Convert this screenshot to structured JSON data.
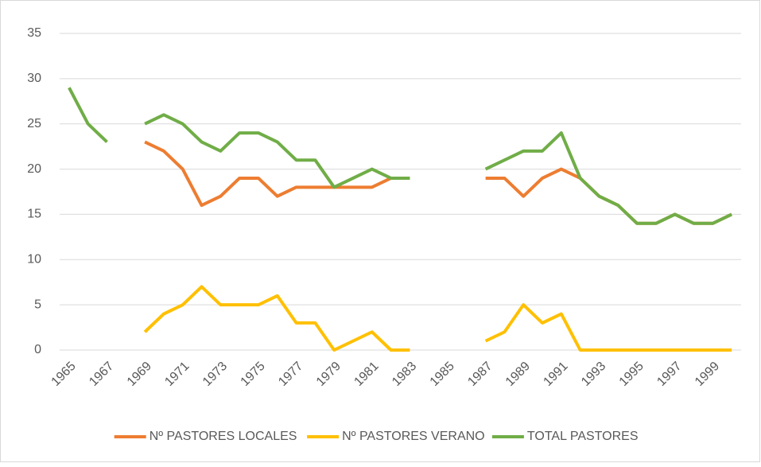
{
  "chart_data": {
    "type": "line",
    "categories": [
      "1965",
      null,
      "1967",
      null,
      "1969",
      null,
      "1971",
      null,
      "1973",
      null,
      "1975",
      null,
      "1977",
      null,
      "1979",
      null,
      "1981",
      null,
      "1983",
      null,
      "1985",
      null,
      "1987",
      null,
      "1989",
      null,
      "1991",
      null,
      "1993",
      null,
      "1995",
      null,
      "1997",
      null,
      "1999",
      null
    ],
    "series": [
      {
        "name": "Nº PASTORES LOCALES",
        "color": "#ED7D31",
        "values": [
          null,
          null,
          null,
          null,
          23,
          22,
          20,
          16,
          17,
          19,
          19,
          17,
          18,
          18,
          18,
          18,
          18,
          19,
          19,
          null,
          null,
          null,
          19,
          19,
          17,
          19,
          20,
          19,
          17,
          16,
          14,
          14,
          15,
          14,
          14,
          15
        ]
      },
      {
        "name": "Nº PASTORES VERANO",
        "color": "#FFC000",
        "values": [
          null,
          null,
          null,
          null,
          2,
          4,
          5,
          7,
          5,
          5,
          5,
          6,
          3,
          3,
          0,
          1,
          2,
          0,
          0,
          null,
          null,
          null,
          1,
          2,
          5,
          3,
          4,
          0,
          0,
          0,
          0,
          0,
          0,
          0,
          0,
          0
        ]
      },
      {
        "name": "TOTAL PASTORES",
        "color": "#70AD47",
        "values": [
          29,
          25,
          23,
          null,
          25,
          26,
          25,
          23,
          22,
          24,
          24,
          23,
          21,
          21,
          18,
          19,
          20,
          19,
          19,
          null,
          null,
          null,
          20,
          21,
          22,
          22,
          24,
          19,
          17,
          16,
          14,
          14,
          15,
          14,
          14,
          15
        ]
      }
    ],
    "ylim": [
      0,
      35
    ],
    "yticks": [
      0,
      5,
      10,
      15,
      20,
      25,
      30,
      35
    ],
    "grid": true,
    "legend": "bottom"
  }
}
